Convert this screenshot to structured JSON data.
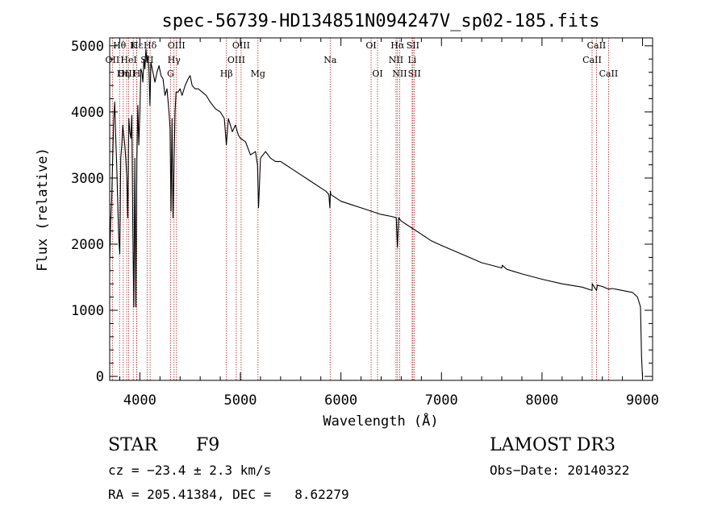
{
  "chart_data": {
    "type": "line",
    "title": "spec-56739-HD134851N094247V_sp02-185.fits",
    "xlabel": "Wavelength (Å)",
    "ylabel": "Flux (relative)",
    "xlim": [
      3700,
      9100
    ],
    "ylim": [
      -60,
      5120
    ],
    "xticks": [
      4000,
      5000,
      6000,
      7000,
      8000,
      9000
    ],
    "xtick_labels": [
      "4000",
      "5000",
      "6000",
      "7000",
      "8000",
      "9000"
    ],
    "yticks": [
      0,
      1000,
      2000,
      3000,
      4000,
      5000
    ],
    "ytick_labels": [
      "0",
      "1000",
      "2000",
      "3000",
      "4000",
      "5000"
    ],
    "series": [
      {
        "name": "flux",
        "x": [
          3700,
          3710,
          3720,
          3730,
          3740,
          3750,
          3760,
          3770,
          3780,
          3790,
          3800,
          3810,
          3820,
          3830,
          3840,
          3850,
          3860,
          3870,
          3880,
          3890,
          3900,
          3910,
          3920,
          3930,
          3940,
          3950,
          3960,
          3970,
          3980,
          3990,
          4000,
          4010,
          4020,
          4030,
          4040,
          4050,
          4060,
          4070,
          4080,
          4090,
          4100,
          4110,
          4130,
          4150,
          4170,
          4190,
          4210,
          4230,
          4250,
          4270,
          4290,
          4300,
          4310,
          4320,
          4330,
          4340,
          4350,
          4360,
          4380,
          4400,
          4420,
          4450,
          4480,
          4500,
          4520,
          4550,
          4580,
          4620,
          4660,
          4700,
          4750,
          4800,
          4840,
          4860,
          4880,
          4900,
          4920,
          4950,
          4980,
          5000,
          5050,
          5100,
          5150,
          5170,
          5180,
          5200,
          5250,
          5300,
          5350,
          5400,
          5450,
          5500,
          5600,
          5700,
          5800,
          5850,
          5880,
          5890,
          5895,
          5900,
          5950,
          6000,
          6100,
          6200,
          6300,
          6400,
          6500,
          6550,
          6562,
          6575,
          6600,
          6700,
          6800,
          6900,
          7000,
          7200,
          7400,
          7600,
          7605,
          7650,
          7800,
          8000,
          8200,
          8400,
          8498,
          8500,
          8542,
          8550,
          8600,
          8662,
          8700,
          8800,
          8900,
          8950,
          8980,
          8990,
          9000,
          9005
        ],
        "y": [
          1750,
          2350,
          2700,
          3300,
          3900,
          4150,
          3600,
          3200,
          2600,
          2100,
          1850,
          3300,
          3500,
          3800,
          3650,
          3500,
          3300,
          3000,
          2400,
          3900,
          3700,
          3600,
          3950,
          2200,
          1050,
          3300,
          1050,
          3300,
          4100,
          3500,
          4000,
          4650,
          4600,
          4450,
          4800,
          4650,
          4950,
          4750,
          4850,
          4650,
          4100,
          4750,
          4600,
          4450,
          4600,
          4700,
          4550,
          4500,
          4250,
          4350,
          4000,
          3750,
          2500,
          3900,
          2400,
          3250,
          4000,
          4300,
          4300,
          4350,
          4250,
          4400,
          4500,
          4550,
          4400,
          4350,
          4350,
          4300,
          4250,
          4150,
          4050,
          4000,
          3900,
          3500,
          3900,
          3800,
          3700,
          3800,
          3650,
          3600,
          3550,
          3350,
          3400,
          3200,
          2550,
          3300,
          3400,
          3300,
          3250,
          3250,
          3200,
          3150,
          3050,
          2950,
          2850,
          2800,
          2750,
          2550,
          2800,
          2750,
          2700,
          2650,
          2600,
          2550,
          2500,
          2450,
          2420,
          2400,
          1950,
          2400,
          2350,
          2250,
          2150,
          2050,
          1980,
          1850,
          1720,
          1640,
          1680,
          1620,
          1550,
          1470,
          1400,
          1350,
          1300,
          1400,
          1300,
          1380,
          1360,
          1320,
          1330,
          1300,
          1270,
          1200,
          1050,
          300,
          0,
          0
        ]
      }
    ],
    "lines": [
      {
        "name": "Hδ",
        "wl": 4102,
        "row": 0
      },
      {
        "name": "K",
        "wl": 3934,
        "row": 0
      },
      {
        "name": "Hθ",
        "wl": 3798,
        "row": 0
      },
      {
        "name": "Hε",
        "wl": 3970,
        "row": 0
      },
      {
        "name": "OIII",
        "wl": 4364,
        "row": 0
      },
      {
        "name": "OIII",
        "wl": 5007,
        "row": 0
      },
      {
        "name": "OI",
        "wl": 6300,
        "row": 0
      },
      {
        "name": "Hα",
        "wl": 6563,
        "row": 0
      },
      {
        "name": "SII",
        "wl": 6716,
        "row": 0
      },
      {
        "name": "CaII",
        "wl": 8542,
        "row": 0
      },
      {
        "name": "OII",
        "wl": 3727,
        "row": 1
      },
      {
        "name": "HeI",
        "wl": 3889,
        "row": 1
      },
      {
        "name": "SII",
        "wl": 4072,
        "row": 1
      },
      {
        "name": "Hγ",
        "wl": 4340,
        "row": 1
      },
      {
        "name": "OIII",
        "wl": 4959,
        "row": 1
      },
      {
        "name": "Na",
        "wl": 5893,
        "row": 1
      },
      {
        "name": "NII",
        "wl": 6548,
        "row": 1
      },
      {
        "name": "Li",
        "wl": 6708,
        "row": 1
      },
      {
        "name": "CaII",
        "wl": 8498,
        "row": 1
      },
      {
        "name": "OIII",
        "wl": 3869,
        "row": 2
      },
      {
        "name": "Hη",
        "wl": 3835,
        "row": 2
      },
      {
        "name": "H",
        "wl": 3969,
        "row": 2
      },
      {
        "name": "G",
        "wl": 4305,
        "row": 2
      },
      {
        "name": "Hβ",
        "wl": 4861,
        "row": 2
      },
      {
        "name": "Mg",
        "wl": 5175,
        "row": 2
      },
      {
        "name": "OI",
        "wl": 6364,
        "row": 2
      },
      {
        "name": "NII",
        "wl": 6584,
        "row": 2
      },
      {
        "name": "SII",
        "wl": 6731,
        "row": 2
      },
      {
        "name": "CaII",
        "wl": 8662,
        "row": 2
      }
    ]
  },
  "info": {
    "object_class": "STAR",
    "subclass": "F9",
    "survey": "LAMOST DR3",
    "cz": "cz = −23.4 ± 2.3 km/s",
    "obs_date": "Obs−Date: 20140322",
    "coords": "RA = 205.41384, DEC =   8.62279"
  },
  "colors": {
    "axes": "#000000",
    "spectrum": "#000000",
    "line_marker": "#b22222"
  }
}
